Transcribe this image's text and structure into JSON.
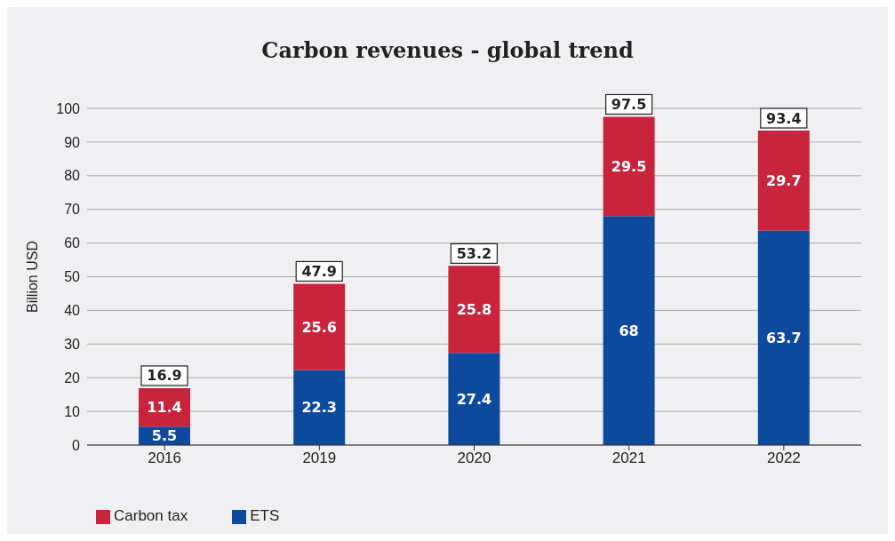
{
  "chart_data": {
    "type": "bar",
    "title": "Carbon revenues - global trend",
    "ylabel": "Billion USD",
    "categories": [
      "2016",
      "2019",
      "2020",
      "2021",
      "2022"
    ],
    "series": [
      {
        "name": "ETS",
        "color": "#0d4a9e",
        "values": [
          5.5,
          22.3,
          27.4,
          68,
          63.7
        ]
      },
      {
        "name": "Carbon tax",
        "color": "#c8243c",
        "values": [
          11.4,
          25.6,
          25.8,
          29.5,
          29.7
        ]
      }
    ],
    "stacked": true,
    "data_labels": true,
    "totals": [
      "16.9",
      "47.9",
      "53.2",
      "97.5",
      "93.4"
    ],
    "ylim": [
      0,
      100
    ],
    "yticks": [
      0,
      10,
      20,
      30,
      40,
      50,
      60,
      70,
      80,
      90,
      100
    ],
    "grid": "y",
    "legend": "bottom left"
  }
}
